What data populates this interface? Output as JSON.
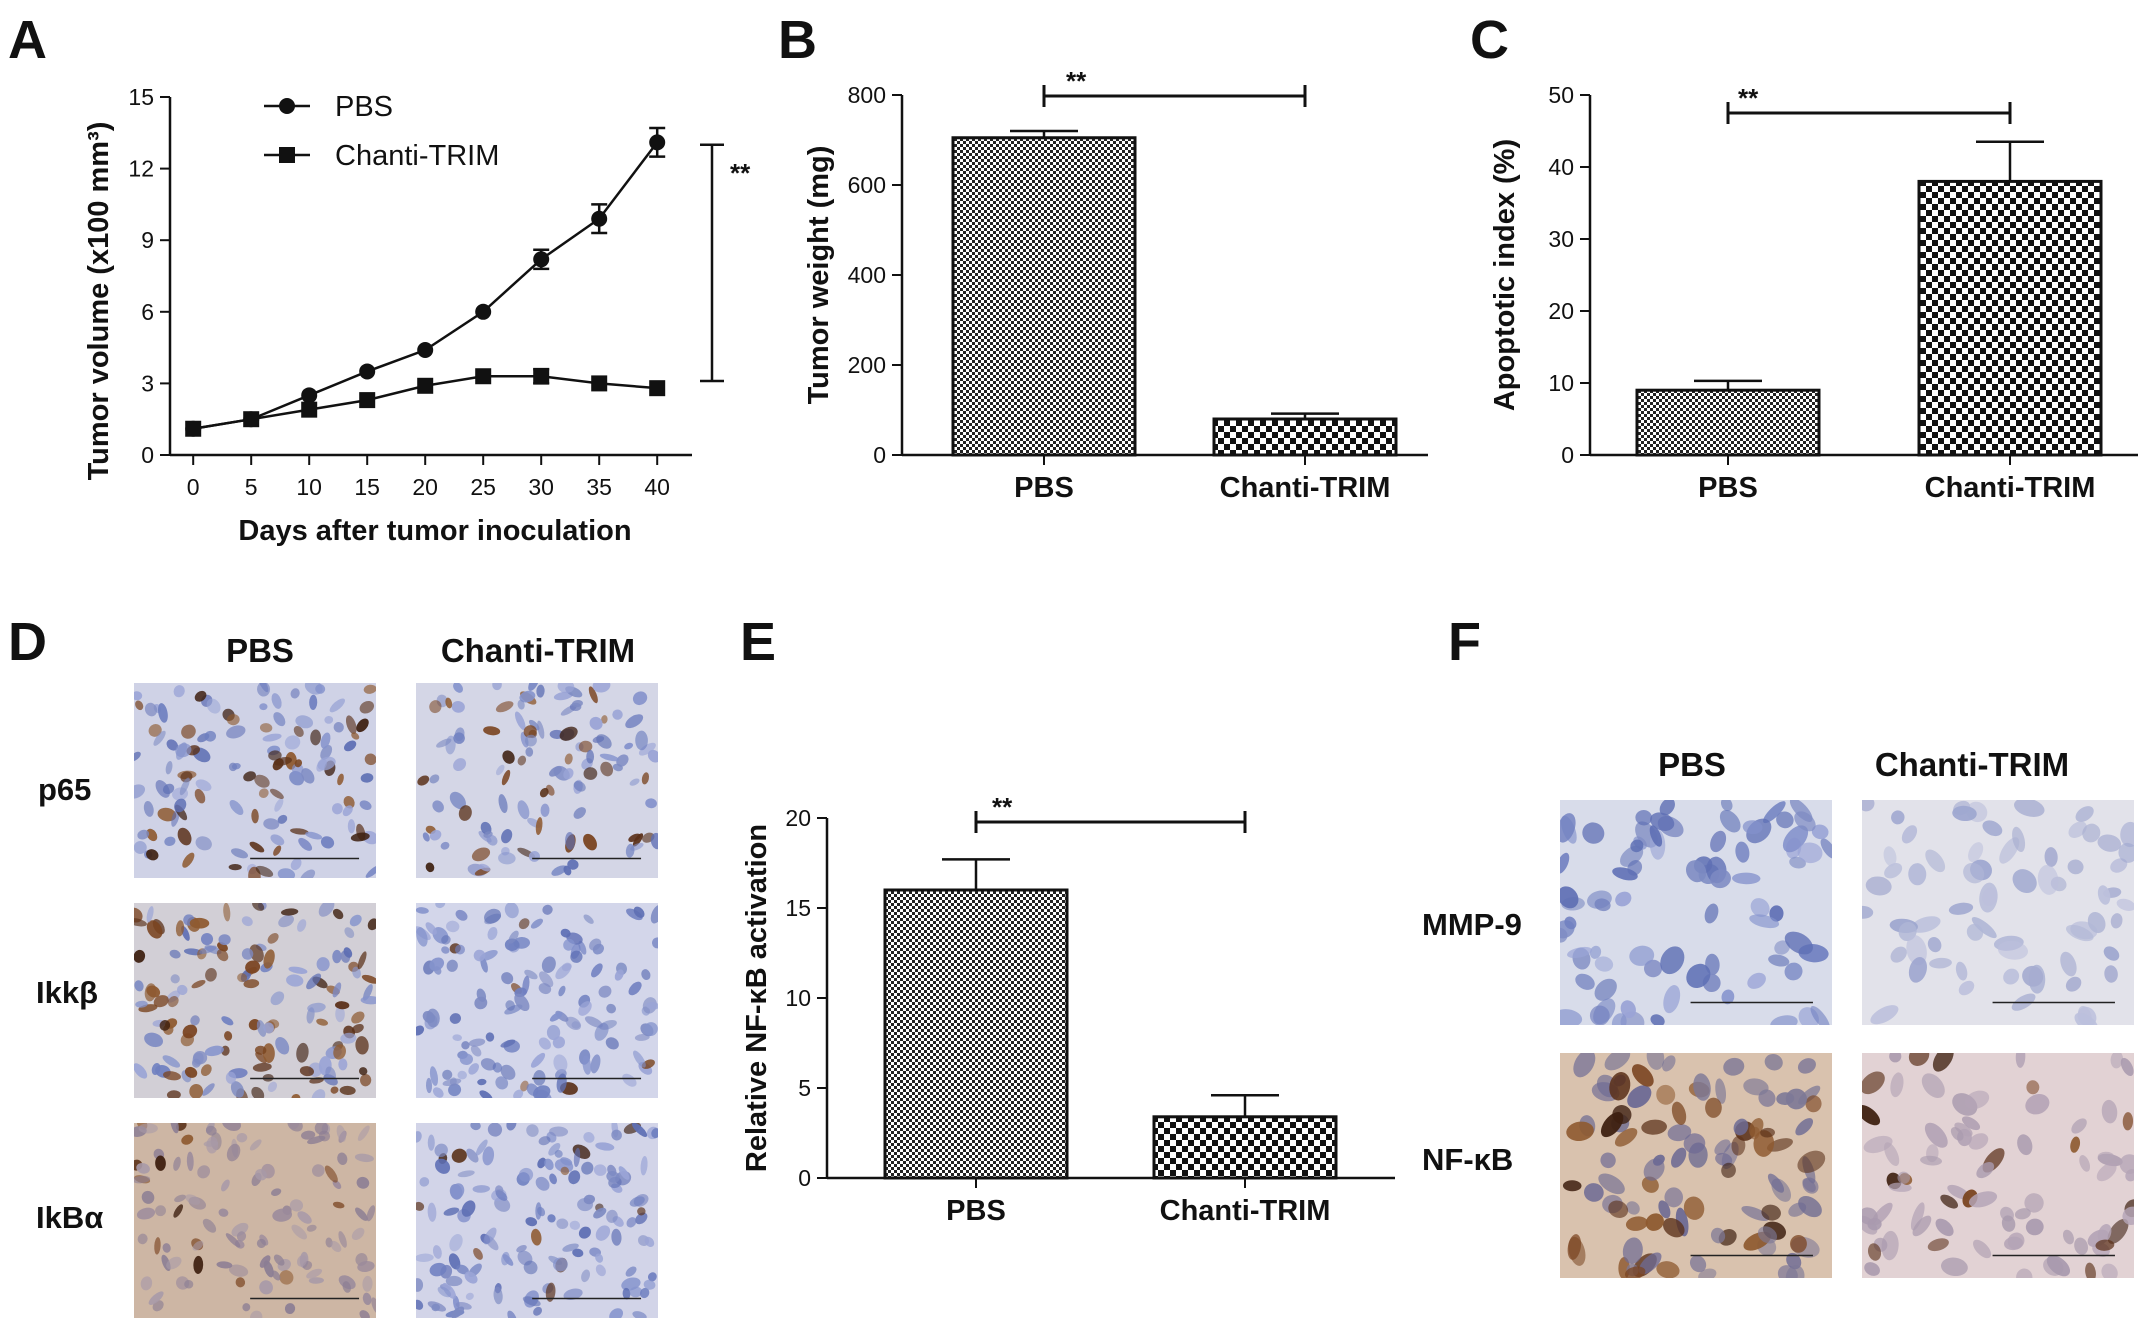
{
  "panels": {
    "A": "A",
    "B": "B",
    "C": "C",
    "D": "D",
    "E": "E",
    "F": "F"
  },
  "chart_data": [
    {
      "id": "A",
      "type": "line",
      "title": "",
      "xlabel": "Days after tumor inoculation",
      "ylabel": "Tumor volume (x100 mm³)",
      "x": [
        0,
        5,
        10,
        15,
        20,
        25,
        30,
        35,
        40
      ],
      "xticks": [
        "0",
        "5",
        "10",
        "15",
        "20",
        "25",
        "30",
        "35",
        "40"
      ],
      "yticks": [
        "0",
        "3",
        "6",
        "9",
        "12",
        "15"
      ],
      "xlim": [
        -2,
        43
      ],
      "ylim": [
        0,
        15
      ],
      "legend_position": "top-left",
      "series": [
        {
          "name": "PBS",
          "marker": "circle",
          "values": [
            1.1,
            1.5,
            2.5,
            3.5,
            4.4,
            6.0,
            8.2,
            9.9,
            13.1
          ],
          "errors": [
            0.1,
            0.1,
            0.1,
            0.1,
            0.1,
            0.1,
            0.4,
            0.6,
            0.6
          ]
        },
        {
          "name": "Chanti-TRIM",
          "marker": "square",
          "values": [
            1.1,
            1.5,
            1.9,
            2.3,
            2.9,
            3.3,
            3.3,
            3.0,
            2.8
          ],
          "errors": [
            0.1,
            0.1,
            0.1,
            0.1,
            0.1,
            0.1,
            0.3,
            0.2,
            0.2
          ]
        }
      ],
      "significance": "**"
    },
    {
      "id": "B",
      "type": "bar",
      "title": "",
      "xlabel": "",
      "ylabel": "Tumor weight (mg)",
      "categories": [
        "PBS",
        "Chanti-TRIM"
      ],
      "values": [
        705,
        80
      ],
      "errors": [
        15,
        12
      ],
      "yticks": [
        "0",
        "200",
        "400",
        "600",
        "800"
      ],
      "ylim": [
        0,
        800
      ],
      "significance": "**"
    },
    {
      "id": "C",
      "type": "bar",
      "title": "",
      "xlabel": "",
      "ylabel": "Apoptotic index (%)",
      "categories": [
        "PBS",
        "Chanti-TRIM"
      ],
      "values": [
        9,
        38
      ],
      "errors": [
        1.3,
        5.5
      ],
      "yticks": [
        "0",
        "10",
        "20",
        "30",
        "40",
        "50"
      ],
      "ylim": [
        0,
        50
      ],
      "significance": "**"
    },
    {
      "id": "E",
      "type": "bar",
      "title": "",
      "xlabel": "",
      "ylabel": "Relative NF-κB activation",
      "categories": [
        "PBS",
        "Chanti-TRIM"
      ],
      "values": [
        16,
        3.4
      ],
      "errors": [
        1.7,
        1.2
      ],
      "yticks": [
        "0",
        "5",
        "10",
        "15",
        "20"
      ],
      "ylim": [
        0,
        20
      ],
      "significance": "**"
    }
  ],
  "panel_D": {
    "columns": [
      "PBS",
      "Chanti-TRIM"
    ],
    "rows": [
      "p65",
      "Ikkβ",
      "IkBα"
    ]
  },
  "panel_F": {
    "columns": [
      "PBS",
      "Chanti-TRIM"
    ],
    "rows": [
      "MMP-9",
      "NF-κB"
    ]
  },
  "colors": {
    "ink": "#111111",
    "hematoxylin": "#6f7fc0",
    "dab": "#5a3018",
    "background_pbs_d": "#cfd2e6",
    "background_ihc_f": "#d8d8e6"
  }
}
